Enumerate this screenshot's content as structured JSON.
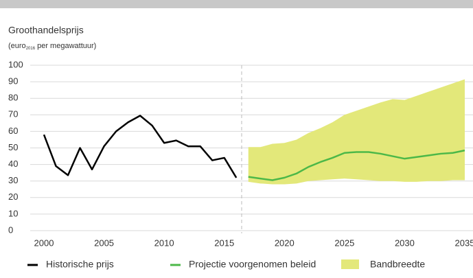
{
  "chart_data": {
    "type": "line",
    "title": "Groothandelsprijs",
    "subtitle": [
      "(euro",
      "2016",
      " per megawattuur)"
    ],
    "ylim": [
      0,
      100
    ],
    "yticks": [
      0,
      10,
      20,
      30,
      40,
      50,
      60,
      70,
      80,
      90,
      100
    ],
    "xlim": [
      2000,
      2035
    ],
    "xticks": [
      2000,
      2005,
      2010,
      2015,
      2020,
      2025,
      2030,
      2035
    ],
    "grid": true,
    "series": [
      {
        "name": "Historische prijs",
        "color": "#000000",
        "type": "line",
        "x": [
          2000,
          2001,
          2002,
          2003,
          2004,
          2005,
          2006,
          2007,
          2008,
          2009,
          2010,
          2011,
          2012,
          2013,
          2014,
          2015,
          2016
        ],
        "values": [
          58,
          39,
          33.5,
          50,
          37,
          51,
          60,
          65.5,
          69.5,
          63.5,
          53,
          54.5,
          51,
          51,
          42.5,
          44,
          32
        ]
      },
      {
        "name": "Projectie voorgenomen beleid",
        "color": "#4cb848",
        "type": "line",
        "x": [
          2017,
          2018,
          2019,
          2020,
          2021,
          2022,
          2023,
          2024,
          2025,
          2026,
          2027,
          2028,
          2029,
          2030,
          2031,
          2032,
          2033,
          2034,
          2035
        ],
        "values": [
          32.5,
          31.5,
          30.5,
          32,
          34.5,
          38.5,
          41.5,
          44,
          47,
          47.5,
          47.5,
          46.5,
          45,
          43.5,
          44.5,
          45.5,
          46.5,
          47,
          48.5
        ]
      },
      {
        "name": "Bandbreedte",
        "color": "#e3e87a",
        "type": "area",
        "x": [
          2017,
          2018,
          2019,
          2020,
          2021,
          2022,
          2023,
          2024,
          2025,
          2026,
          2027,
          2028,
          2029,
          2030,
          2031,
          2032,
          2033,
          2034,
          2035
        ],
        "values": [
          50.5,
          50.5,
          52.5,
          53,
          55,
          59,
          62,
          65.5,
          70,
          72.5,
          75,
          77.5,
          79.5,
          79,
          81.5,
          84,
          86.5,
          89,
          91.5
        ],
        "lower": [
          29.5,
          28.5,
          28,
          28,
          28.5,
          30,
          30.5,
          31,
          31.5,
          31,
          30.5,
          30,
          30,
          29.5,
          29.5,
          30,
          30,
          30.5,
          30.5
        ]
      }
    ]
  }
}
